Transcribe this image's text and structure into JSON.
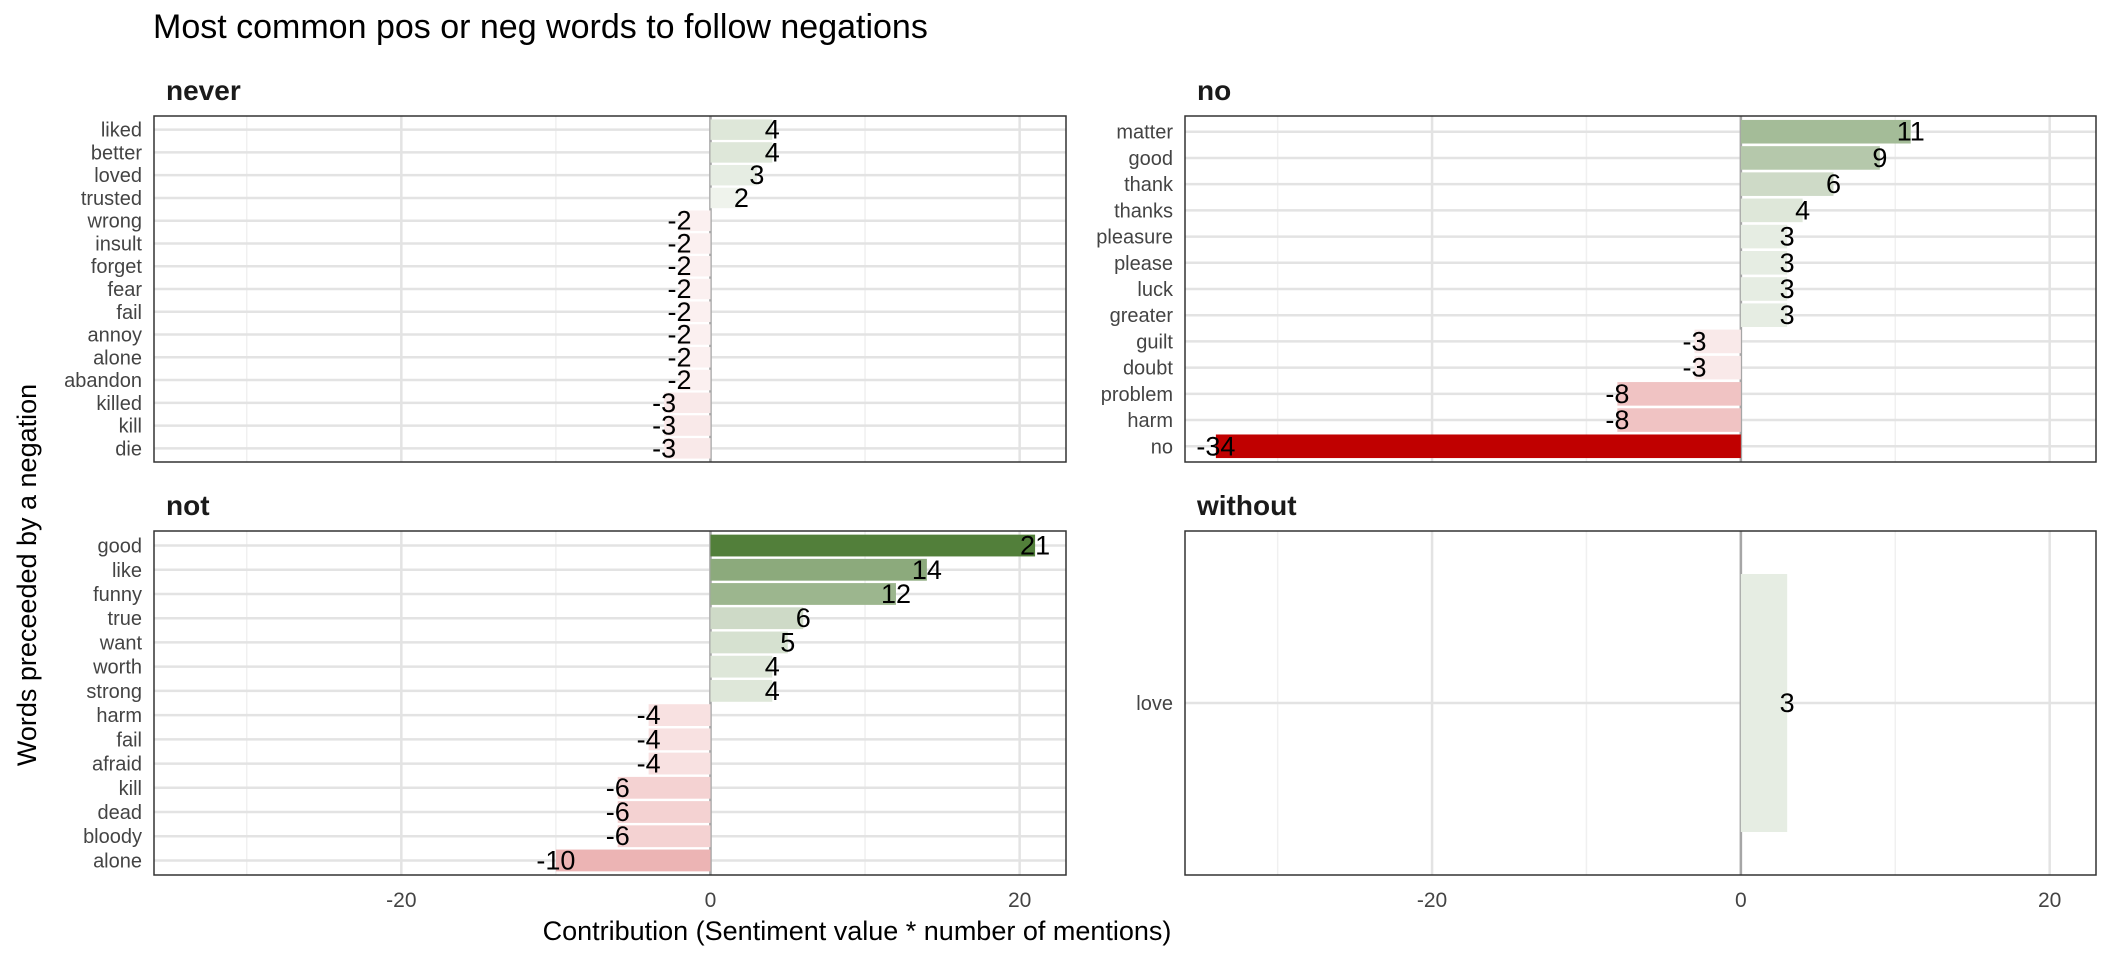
{
  "chart_data": {
    "type": "bar",
    "orientation": "horizontal",
    "title": "Most common pos or neg words to follow negations",
    "xlabel": "Contribution (Sentiment value * number of mentions)",
    "ylabel": "Words preceeded by a negation",
    "xlim": [
      -36,
      23
    ],
    "x_ticks": [
      -20,
      0,
      20
    ],
    "x_tick_labels": [
      "-20",
      "0",
      "20"
    ],
    "grid": true,
    "fill_scale": {
      "low": "#c00000",
      "mid": "#ffffff",
      "high": "#527f3a",
      "min": -34,
      "max": 21
    },
    "panels": [
      {
        "name": "never",
        "categories": [
          "liked",
          "better",
          "loved",
          "trusted",
          "wrong",
          "insult",
          "forget",
          "fear",
          "fail",
          "annoy",
          "alone",
          "abandon",
          "killed",
          "kill",
          "die"
        ],
        "values": [
          4,
          4,
          3,
          2,
          -2,
          -2,
          -2,
          -2,
          -2,
          -2,
          -2,
          -2,
          -3,
          -3,
          -3
        ]
      },
      {
        "name": "no",
        "categories": [
          "matter",
          "good",
          "thank",
          "thanks",
          "pleasure",
          "please",
          "luck",
          "greater",
          "guilt",
          "doubt",
          "problem",
          "harm",
          "no"
        ],
        "values": [
          11,
          9,
          6,
          4,
          3,
          3,
          3,
          3,
          -3,
          -3,
          -8,
          -8,
          -34
        ]
      },
      {
        "name": "not",
        "categories": [
          "good",
          "like",
          "funny",
          "true",
          "want",
          "worth",
          "strong",
          "harm",
          "fail",
          "afraid",
          "kill",
          "dead",
          "bloody",
          "alone"
        ],
        "values": [
          21,
          14,
          12,
          6,
          5,
          4,
          4,
          -4,
          -4,
          -4,
          -6,
          -6,
          -6,
          -10
        ]
      },
      {
        "name": "without",
        "categories": [
          "love"
        ],
        "values": [
          3
        ]
      }
    ]
  }
}
